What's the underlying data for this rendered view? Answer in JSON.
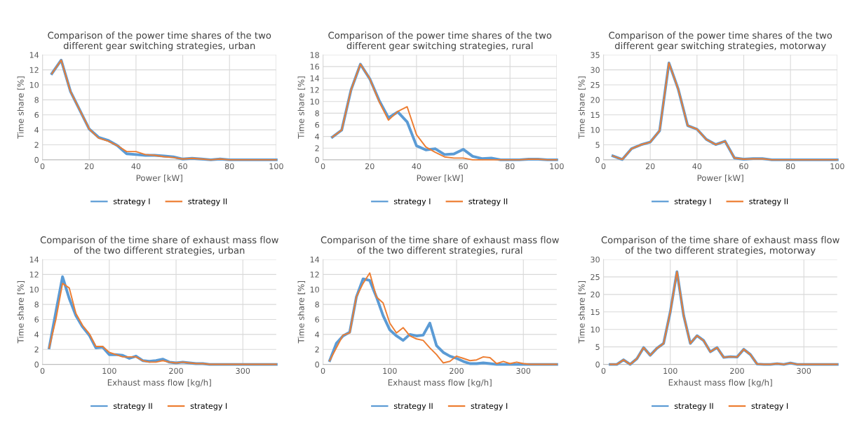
{
  "chart_data": [
    {
      "type": "line",
      "title": "Comparison of the power time shares of the two different gear switching strategies, urban",
      "xlabel": "Power [kW]",
      "ylabel": "Time share [%]",
      "x": [
        4,
        8,
        12,
        16,
        20,
        24,
        28,
        32,
        36,
        40,
        44,
        48,
        52,
        56,
        60,
        64,
        68,
        72,
        76,
        80,
        84,
        88,
        92,
        96,
        100
      ],
      "xlim": [
        0,
        100
      ],
      "xticks": [
        0,
        20,
        40,
        60,
        80,
        100
      ],
      "ylim": [
        0,
        14
      ],
      "yticks": [
        0,
        2,
        4,
        6,
        8,
        10,
        12,
        14
      ],
      "grid": true,
      "legend": "bottom",
      "series": [
        {
          "name": "strategy I",
          "color": "#5b9bd5",
          "values": [
            11.5,
            13.3,
            9.1,
            6.6,
            4.1,
            3.0,
            2.6,
            1.9,
            0.8,
            0.7,
            0.6,
            0.6,
            0.5,
            0.4,
            0.1,
            0.2,
            0.1,
            0,
            0.1,
            0,
            0,
            0,
            0,
            0,
            0
          ]
        },
        {
          "name": "strategy II",
          "color": "#ed7d31",
          "values": [
            11.5,
            13.3,
            9.1,
            6.6,
            4.1,
            2.9,
            2.5,
            1.9,
            1.1,
            1.1,
            0.7,
            0.6,
            0.4,
            0.3,
            0.1,
            0.2,
            0.1,
            0,
            0.1,
            0,
            0,
            0,
            0,
            0,
            0
          ]
        }
      ]
    },
    {
      "type": "line",
      "title": "Comparison of the power time shares of the two different gear switching strategies, rural",
      "xlabel": "Power [kW]",
      "ylabel": "Time share [%]",
      "x": [
        4,
        8,
        12,
        16,
        20,
        24,
        28,
        32,
        36,
        40,
        44,
        48,
        52,
        56,
        60,
        64,
        68,
        72,
        76,
        80,
        84,
        88,
        92,
        96,
        100
      ],
      "xlim": [
        0,
        100
      ],
      "xticks": [
        0,
        20,
        40,
        60,
        80,
        100
      ],
      "ylim": [
        0,
        18
      ],
      "yticks": [
        0,
        2,
        4,
        6,
        8,
        10,
        12,
        14,
        16,
        18
      ],
      "grid": true,
      "legend": "bottom",
      "series": [
        {
          "name": "strategy I",
          "color": "#5b9bd5",
          "values": [
            3.9,
            5.1,
            12,
            16.4,
            13.9,
            10.2,
            7.2,
            8.2,
            6.5,
            2.4,
            1.7,
            1.9,
            0.9,
            1.0,
            1.8,
            0.6,
            0.2,
            0.3,
            0,
            0,
            0,
            0.1,
            0.1,
            0,
            0
          ]
        },
        {
          "name": "strategy II",
          "color": "#ed7d31",
          "values": [
            3.9,
            5.1,
            12,
            16.4,
            13.9,
            10.0,
            6.8,
            8.3,
            9.1,
            4.3,
            2.2,
            1.3,
            0.5,
            0.3,
            0.3,
            0,
            0,
            0,
            0,
            0,
            0,
            0.1,
            0.1,
            0,
            0
          ]
        }
      ]
    },
    {
      "type": "line",
      "title": "Comparison of the power time shares of the two different gear switching strategies, motorway",
      "xlabel": "Power [kW]",
      "ylabel": "Time share [%]",
      "x": [
        4,
        8,
        12,
        16,
        20,
        24,
        28,
        32,
        36,
        40,
        44,
        48,
        52,
        56,
        60,
        64,
        68,
        72,
        76,
        80,
        84,
        88,
        92,
        96,
        100
      ],
      "xlim": [
        0,
        100
      ],
      "xticks": [
        0,
        20,
        40,
        60,
        80,
        100
      ],
      "ylim": [
        0,
        35
      ],
      "yticks": [
        0,
        5,
        10,
        15,
        20,
        25,
        30,
        35
      ],
      "grid": true,
      "legend": "bottom",
      "series": [
        {
          "name": "strategy I",
          "color": "#5b9bd5",
          "values": [
            1.3,
            0.1,
            3.7,
            5.0,
            5.9,
            9.7,
            32.3,
            23.5,
            11.4,
            10.2,
            6.8,
            5.1,
            6.2,
            0.6,
            0.2,
            0.4,
            0.4,
            0,
            0,
            0,
            0,
            0,
            0,
            0,
            0
          ]
        },
        {
          "name": "strategy II",
          "color": "#ed7d31",
          "values": [
            1.3,
            0.1,
            3.7,
            5.0,
            5.9,
            9.7,
            32.3,
            23.5,
            11.4,
            10.2,
            6.8,
            5.1,
            6.2,
            0.6,
            0.2,
            0.3,
            0.3,
            0,
            0,
            0,
            0,
            0,
            0,
            0,
            0
          ]
        }
      ]
    },
    {
      "type": "line",
      "title": "Comparison of the time share of exhaust mass flow of the two different strategies, urban",
      "xlabel": "Exhaust mass flow [kg/h]",
      "ylabel": "Time share [%]",
      "x": [
        10,
        20,
        30,
        40,
        50,
        60,
        70,
        80,
        90,
        100,
        110,
        120,
        130,
        140,
        150,
        160,
        170,
        180,
        190,
        200,
        210,
        220,
        230,
        240,
        250,
        260,
        270,
        280,
        290,
        300,
        310,
        320,
        330,
        340,
        350
      ],
      "xlim": [
        0,
        350
      ],
      "xticks": [
        0,
        100,
        200,
        300
      ],
      "ylim": [
        0,
        14
      ],
      "yticks": [
        0,
        2,
        4,
        6,
        8,
        10,
        12,
        14
      ],
      "grid": true,
      "legend": "bottom",
      "series": [
        {
          "name": "strategy II",
          "color": "#5b9bd5",
          "values": [
            2.2,
            7.0,
            11.7,
            8.8,
            6.5,
            5.0,
            3.9,
            2.2,
            2.3,
            1.3,
            1.3,
            1.2,
            0.8,
            1.1,
            0.5,
            0.4,
            0.5,
            0.7,
            0.3,
            0.2,
            0.3,
            0.2,
            0.1,
            0.1,
            0,
            0,
            0,
            0,
            0,
            0,
            0,
            0,
            0,
            0,
            0
          ]
        },
        {
          "name": "strategy I",
          "color": "#ed7d31",
          "values": [
            2.2,
            6.0,
            10.8,
            10.2,
            6.8,
            5.2,
            4.1,
            2.4,
            2.4,
            1.6,
            1.3,
            1.0,
            1.0,
            1.0,
            0.5,
            0.3,
            0.3,
            0.5,
            0.3,
            0.2,
            0.3,
            0.2,
            0.1,
            0.1,
            0,
            0,
            0,
            0,
            0,
            0,
            0,
            0,
            0,
            0,
            0
          ]
        }
      ]
    },
    {
      "type": "line",
      "title": "Comparison of the time share of exhaust mass flow of the two different strategies, rural",
      "xlabel": "Exhaust mass flow [kg/h]",
      "ylabel": "Time share [%]",
      "x": [
        10,
        20,
        30,
        40,
        50,
        60,
        70,
        80,
        90,
        100,
        110,
        120,
        130,
        140,
        150,
        160,
        170,
        180,
        190,
        200,
        210,
        220,
        230,
        240,
        250,
        260,
        270,
        280,
        290,
        300,
        310,
        320,
        330,
        340,
        350
      ],
      "xlim": [
        0,
        350
      ],
      "xticks": [
        0,
        100,
        200,
        300
      ],
      "ylim": [
        0,
        14
      ],
      "yticks": [
        0,
        2,
        4,
        6,
        8,
        10,
        12,
        14
      ],
      "grid": true,
      "legend": "bottom",
      "series": [
        {
          "name": "strategy II",
          "color": "#5b9bd5",
          "values": [
            0.5,
            2.8,
            3.8,
            4.3,
            9.0,
            11.4,
            11.2,
            9.0,
            6.5,
            4.6,
            3.8,
            3.2,
            4.0,
            3.8,
            3.9,
            5.5,
            2.5,
            1.6,
            1.1,
            0.8,
            0.4,
            0.1,
            0.1,
            0.2,
            0.1,
            0,
            0,
            0,
            0,
            0,
            0,
            0,
            0,
            0,
            0
          ]
        },
        {
          "name": "strategy I",
          "color": "#ed7d31",
          "values": [
            0.5,
            2.2,
            3.9,
            4.2,
            9.0,
            10.8,
            12.2,
            9.0,
            8.2,
            5.5,
            4.2,
            4.9,
            3.8,
            3.4,
            3.2,
            2.2,
            1.3,
            0.2,
            0.4,
            1.1,
            0.8,
            0.5,
            0.6,
            1.0,
            0.9,
            0.1,
            0.4,
            0.1,
            0.3,
            0.1,
            0,
            0,
            0,
            0,
            0
          ]
        }
      ]
    },
    {
      "type": "line",
      "title": "Comparison of the time share of exhaust mass flow of the two different strategies, motorway",
      "xlabel": "Exhaust mass flow [kg/h]",
      "ylabel": "Time share [%]",
      "x": [
        10,
        20,
        30,
        40,
        50,
        60,
        70,
        80,
        90,
        100,
        110,
        120,
        130,
        140,
        150,
        160,
        170,
        180,
        190,
        200,
        210,
        220,
        230,
        240,
        250,
        260,
        270,
        280,
        290,
        300,
        310,
        320,
        330,
        340,
        350
      ],
      "xlim": [
        0,
        350
      ],
      "xticks": [
        0,
        100,
        200,
        300
      ],
      "ylim": [
        0,
        30
      ],
      "yticks": [
        0,
        5,
        10,
        15,
        20,
        25,
        30
      ],
      "grid": true,
      "legend": "bottom",
      "series": [
        {
          "name": "strategy II",
          "color": "#5b9bd5",
          "values": [
            0,
            0,
            1.3,
            0,
            1.6,
            4.8,
            2.6,
            4.6,
            6.0,
            15,
            26.5,
            14,
            6.0,
            8.2,
            6.8,
            3.6,
            4.8,
            2.0,
            2.2,
            2.1,
            4.3,
            2.8,
            0.1,
            0,
            0,
            0.2,
            0,
            0.4,
            0,
            0,
            0,
            0,
            0,
            0,
            0
          ]
        },
        {
          "name": "strategy I",
          "color": "#ed7d31",
          "values": [
            0,
            0,
            1.3,
            0,
            1.6,
            4.8,
            2.6,
            4.6,
            6.0,
            15,
            26.5,
            14,
            6.0,
            8.2,
            6.8,
            3.6,
            4.8,
            2.0,
            2.2,
            2.1,
            4.3,
            2.8,
            0.1,
            0,
            0,
            0.2,
            0,
            0.4,
            0,
            0,
            0,
            0,
            0,
            0,
            0
          ]
        }
      ]
    }
  ]
}
